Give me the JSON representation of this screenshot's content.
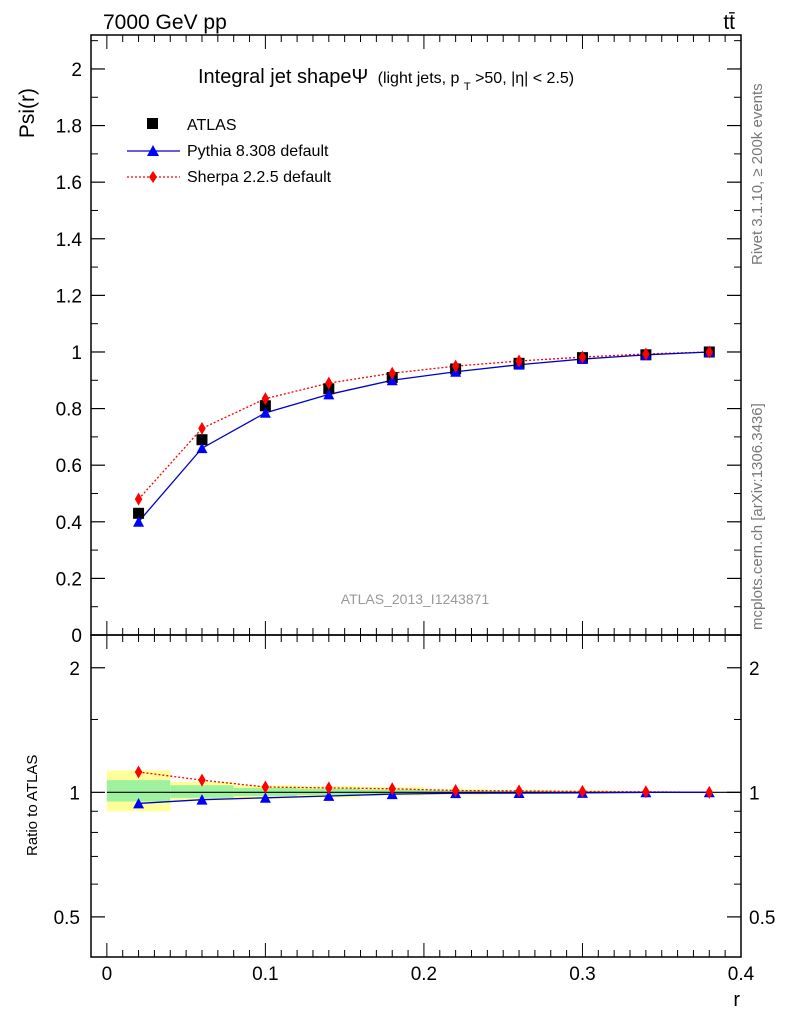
{
  "header": {
    "energy_label": "7000 GeV pp",
    "process_label": "tt̄"
  },
  "side_labels": {
    "rivet": "Rivet 3.1.10, ≥ 200k events",
    "mcplots": "mcplots.cern.ch [arXiv:1306.3436]"
  },
  "colors": {
    "data": "#000000",
    "pythia": "#0000ff",
    "pythia_line": "#0000cc",
    "sherpa": "#ff0000",
    "band_inner": "#9ef19e",
    "band_outer": "#ffff99"
  },
  "chart_data": [
    {
      "type": "line",
      "title_main": "Integral jet shapeΨ",
      "title_sub_prefix": "(light jets, p",
      "title_sub_index": "T",
      "title_sub_suffix": ">50, |η| < 2.5)",
      "watermark": "ATLAS_2013_I1243871",
      "ylabel": "Psi(r)",
      "xlim": [
        -0.01,
        0.4
      ],
      "ylim": [
        0,
        2.12
      ],
      "yticks": [
        {
          "v": 0,
          "label": "0"
        },
        {
          "v": 0.2,
          "label": "0.2"
        },
        {
          "v": 0.4,
          "label": "0.4"
        },
        {
          "v": 0.6,
          "label": "0.6"
        },
        {
          "v": 0.8,
          "label": "0.8"
        },
        {
          "v": 1.0,
          "label": "1"
        },
        {
          "v": 1.2,
          "label": "1.2"
        },
        {
          "v": 1.4,
          "label": "1.4"
        },
        {
          "v": 1.6,
          "label": "1.6"
        },
        {
          "v": 1.8,
          "label": "1.8"
        },
        {
          "v": 2.0,
          "label": "2"
        }
      ],
      "legend": [
        {
          "key": "data",
          "label": "ATLAS"
        },
        {
          "key": "pythia",
          "label": "Pythia 8.308 default"
        },
        {
          "key": "sherpa",
          "label": "Sherpa 2.2.5 default"
        }
      ],
      "x": [
        0.02,
        0.06,
        0.1,
        0.14,
        0.18,
        0.22,
        0.26,
        0.3,
        0.34,
        0.38
      ],
      "series": [
        {
          "key": "data",
          "values": [
            0.43,
            0.69,
            0.81,
            0.87,
            0.91,
            0.94,
            0.96,
            0.98,
            0.99,
            1.0
          ]
        },
        {
          "key": "pythia",
          "values": [
            0.4,
            0.66,
            0.785,
            0.85,
            0.9,
            0.93,
            0.955,
            0.975,
            0.99,
            1.0
          ]
        },
        {
          "key": "sherpa",
          "values": [
            0.48,
            0.73,
            0.835,
            0.89,
            0.925,
            0.95,
            0.968,
            0.982,
            0.993,
            1.0
          ]
        }
      ]
    },
    {
      "type": "line",
      "ylabel": "Ratio to ATLAS",
      "xlabel": "r",
      "yscale": "log",
      "xlim": [
        -0.01,
        0.4
      ],
      "ylim": [
        0.4,
        2.4
      ],
      "yticks": [
        {
          "v": 0.5,
          "label": "0.5"
        },
        {
          "v": 1.0,
          "label": "1"
        },
        {
          "v": 2.0,
          "label": "2"
        }
      ],
      "xticks": [
        {
          "v": 0,
          "label": "0"
        },
        {
          "v": 0.1,
          "label": "0.1"
        },
        {
          "v": 0.2,
          "label": "0.2"
        },
        {
          "v": 0.3,
          "label": "0.3"
        },
        {
          "v": 0.4,
          "label": "0.4"
        }
      ],
      "bands": [
        {
          "x0": 0.0,
          "x1": 0.04,
          "inner": [
            0.95,
            1.07
          ],
          "outer": [
            0.9,
            1.13
          ]
        },
        {
          "x0": 0.04,
          "x1": 0.08,
          "inner": [
            0.97,
            1.04
          ],
          "outer": [
            0.955,
            1.06
          ]
        },
        {
          "x0": 0.08,
          "x1": 0.12,
          "inner": [
            0.98,
            1.025
          ],
          "outer": [
            0.965,
            1.04
          ]
        },
        {
          "x0": 0.12,
          "x1": 0.16,
          "inner": [
            0.985,
            1.02
          ],
          "outer": [
            0.97,
            1.035
          ]
        },
        {
          "x0": 0.16,
          "x1": 0.2,
          "inner": [
            0.99,
            1.015
          ],
          "outer": [
            0.98,
            1.03
          ]
        },
        {
          "x0": 0.2,
          "x1": 0.24,
          "inner": [
            0.993,
            1.01
          ],
          "outer": [
            0.985,
            1.02
          ]
        },
        {
          "x0": 0.24,
          "x1": 0.28,
          "inner": [
            0.995,
            1.008
          ],
          "outer": [
            0.99,
            1.015
          ]
        },
        {
          "x0": 0.28,
          "x1": 0.32,
          "inner": [
            0.997,
            1.005
          ],
          "outer": [
            0.993,
            1.01
          ]
        },
        {
          "x0": 0.32,
          "x1": 0.36,
          "inner": [
            0.998,
            1.003
          ],
          "outer": [
            0.996,
            1.005
          ]
        },
        {
          "x0": 0.36,
          "x1": 0.4,
          "inner": [
            0.999,
            1.001
          ],
          "outer": [
            0.998,
            1.002
          ]
        }
      ],
      "x": [
        0.02,
        0.06,
        0.1,
        0.14,
        0.18,
        0.22,
        0.26,
        0.3,
        0.34,
        0.38
      ],
      "series": [
        {
          "key": "pythia",
          "values": [
            0.94,
            0.96,
            0.97,
            0.98,
            0.99,
            0.995,
            0.996,
            0.997,
            1.0,
            1.0
          ]
        },
        {
          "key": "sherpa",
          "values": [
            1.12,
            1.07,
            1.03,
            1.025,
            1.02,
            1.01,
            1.008,
            1.005,
            1.003,
            1.0
          ]
        }
      ]
    }
  ]
}
